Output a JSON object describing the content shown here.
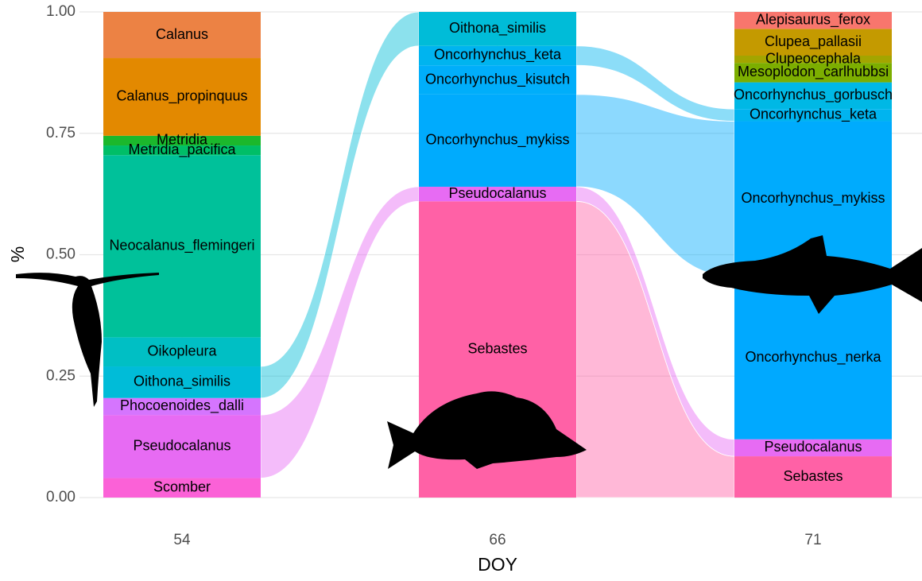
{
  "chart_data": {
    "type": "alluvial",
    "x_label": "DOY",
    "y_label": "%",
    "categories": [
      "54",
      "66",
      "71"
    ],
    "ylim": [
      0,
      1
    ],
    "yticks": [
      {
        "value": 0,
        "label": "0.00"
      },
      {
        "value": 0.25,
        "label": "0.25"
      },
      {
        "value": 0.5,
        "label": "0.50"
      },
      {
        "value": 0.75,
        "label": "0.75"
      },
      {
        "value": 1,
        "label": "1.00"
      }
    ],
    "grid": true,
    "series": [
      {
        "name": "Scomber",
        "color": "#fb61d7",
        "values": [
          0.04,
          null,
          null
        ]
      },
      {
        "name": "Sebastes",
        "color": "#ff61a6",
        "values": [
          null,
          0.61,
          0.085
        ]
      },
      {
        "name": "Pseudocalanus",
        "color": "#e76bf3",
        "values": [
          0.13,
          0.03,
          0.035
        ]
      },
      {
        "name": "Phocoenoides_dalli",
        "color": "#d575fe",
        "values": [
          0.035,
          null,
          null
        ]
      },
      {
        "name": "Oncorhynchus_nerka",
        "color": "#00a9ff",
        "values": [
          null,
          null,
          0.335
        ]
      },
      {
        "name": "Oncorhynchus_mykiss",
        "color": "#00abfd",
        "values": [
          null,
          0.19,
          0.32
        ]
      },
      {
        "name": "Oncorhynchus_kisutch",
        "color": "#00aefa",
        "values": [
          null,
          0.06,
          null
        ]
      },
      {
        "name": "Oncorhynchus_keta",
        "color": "#00b4ef",
        "values": [
          null,
          0.04,
          0.025
        ]
      },
      {
        "name": "Oncorhynchus_gorbusch",
        "color": "#00b8e5",
        "values": [
          null,
          null,
          0.055
        ]
      },
      {
        "name": "Oithona_similis",
        "color": "#00bcd8",
        "values": [
          0.065,
          0.07,
          null
        ]
      },
      {
        "name": "Oikopleura",
        "color": "#00bfc4",
        "values": [
          0.06,
          null,
          null
        ]
      },
      {
        "name": "Neocalanus_flemingeri",
        "color": "#00c19a",
        "values": [
          0.375,
          null,
          null
        ]
      },
      {
        "name": "Metridia_pacifica",
        "color": "#00be67",
        "values": [
          0.02,
          null,
          null
        ]
      },
      {
        "name": "Metridia",
        "color": "#1bb82c",
        "values": [
          0.02,
          null,
          null
        ]
      },
      {
        "name": "Mesoplodon_carlhubbsi",
        "color": "#7cae00",
        "values": [
          null,
          null,
          0.04
        ]
      },
      {
        "name": "Clupeocephala",
        "color": "#a3a500",
        "values": [
          null,
          null,
          0.015
        ]
      },
      {
        "name": "Clupea_pallasii",
        "color": "#c49a00",
        "values": [
          null,
          null,
          0.055
        ]
      },
      {
        "name": "Alepisaurus_ferox",
        "color": "#f8766d",
        "values": [
          null,
          null,
          0.035
        ]
      },
      {
        "name": "Calanus_propinquus",
        "color": "#e38900",
        "values": [
          0.16,
          null,
          null
        ]
      },
      {
        "name": "Calanus",
        "color": "#ec8244",
        "values": [
          0.095,
          null,
          null
        ]
      }
    ]
  }
}
